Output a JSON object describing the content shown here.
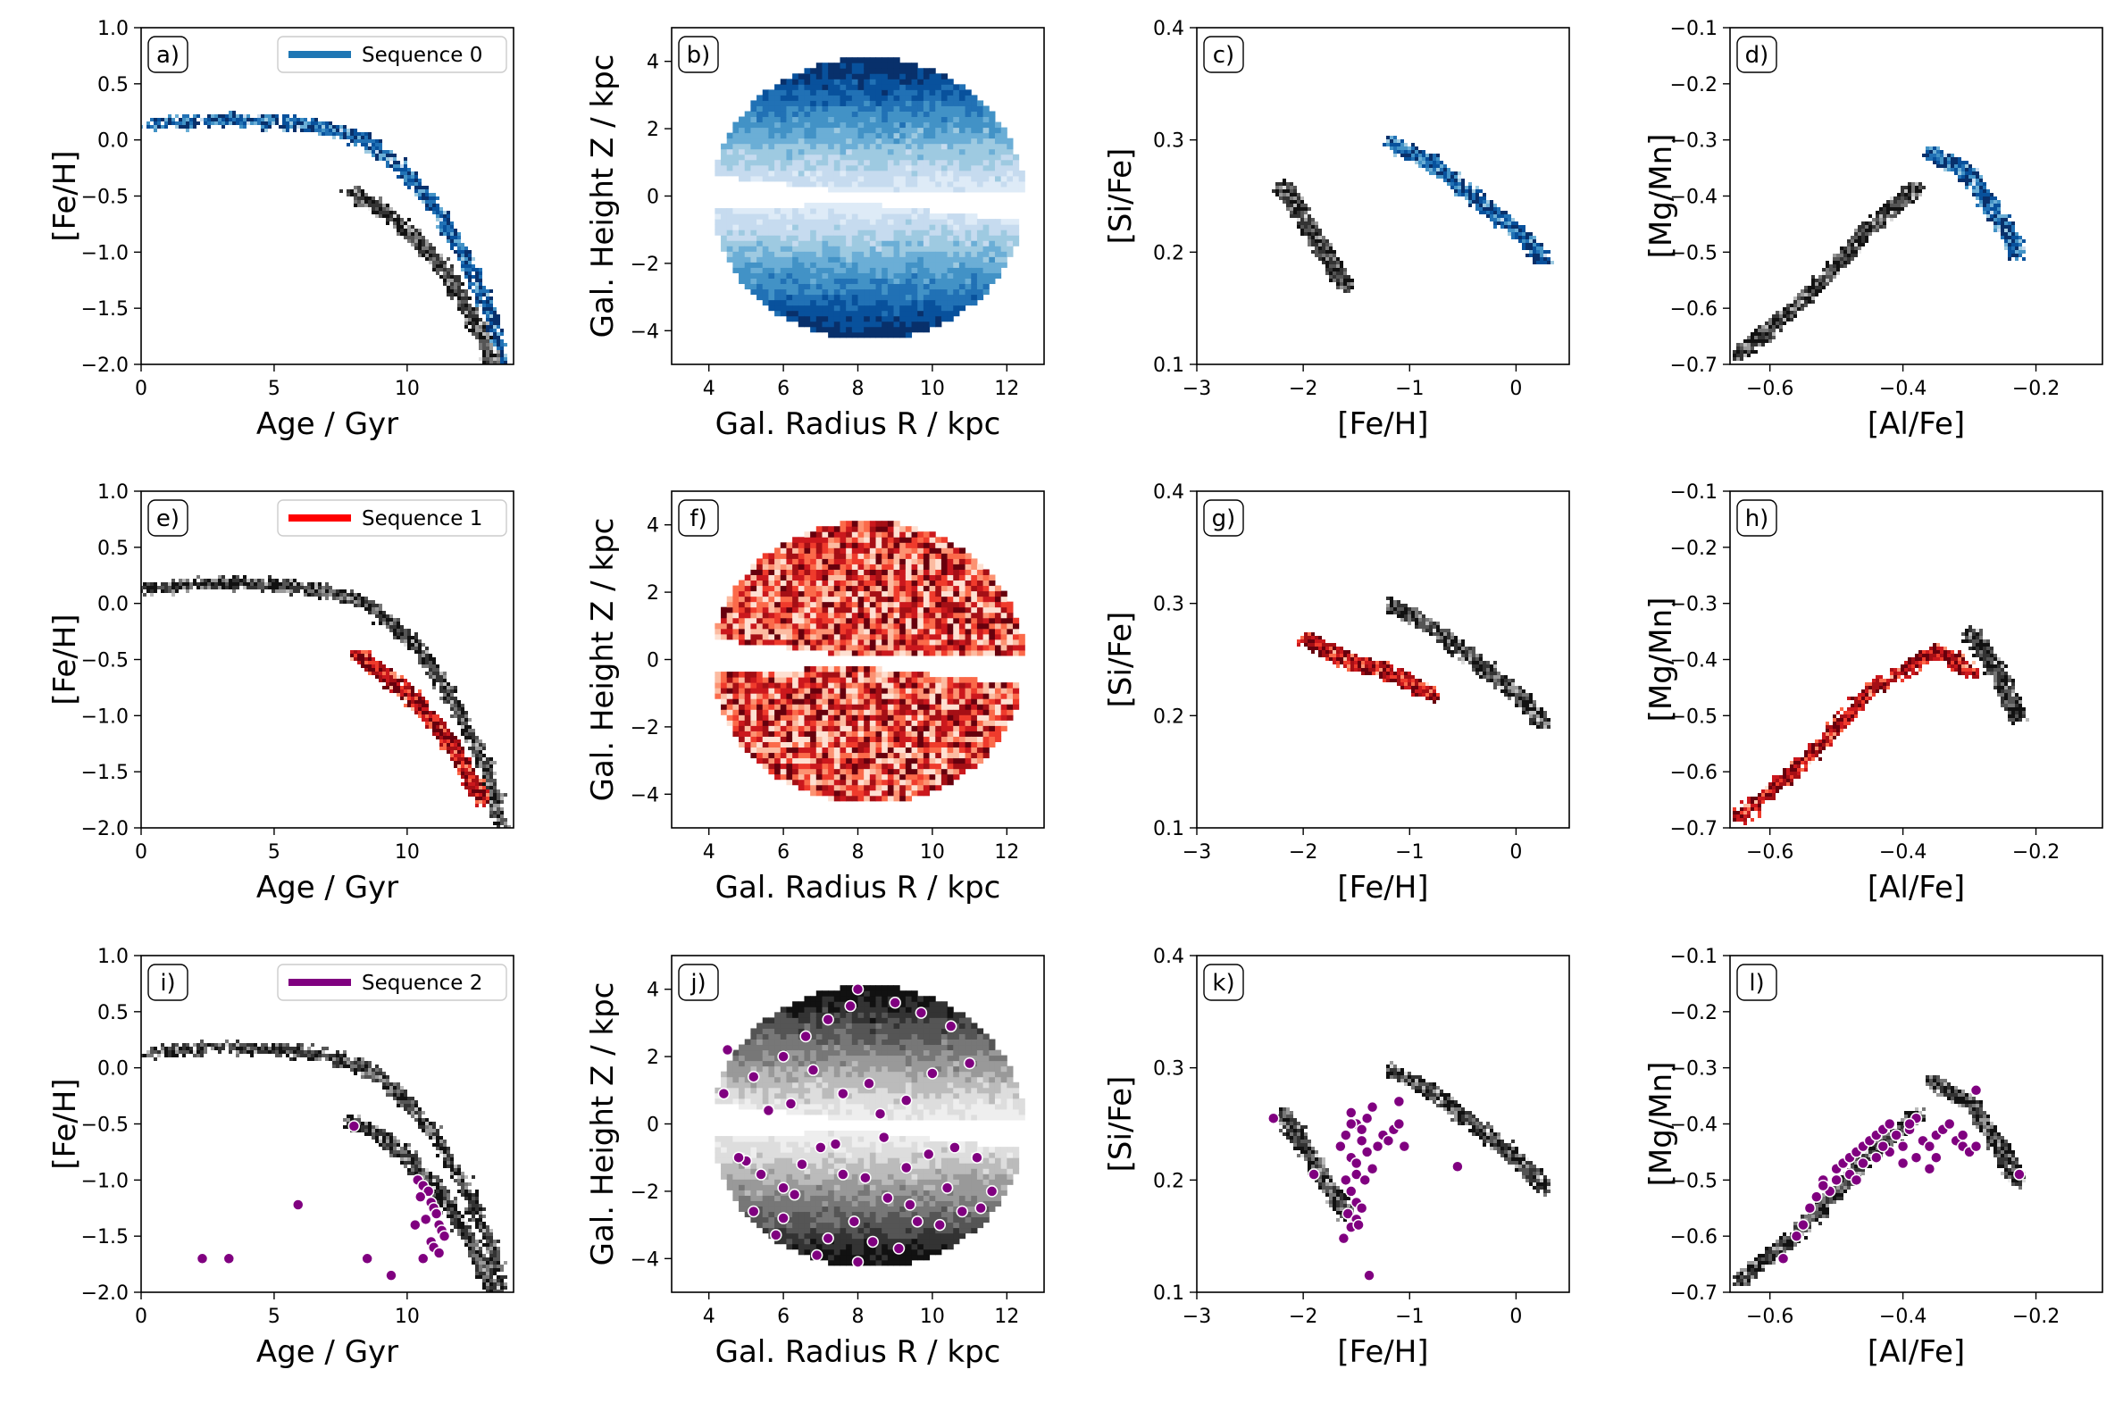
{
  "colors": {
    "sequence_0": "#1f77b4",
    "sequence_1": "#ff0000",
    "sequence_2": "#800080",
    "background_density": "greyscale"
  },
  "chart_data": [
    {
      "id": "a",
      "type": "heatmap",
      "panel_label": "a)",
      "xlabel": "Age / Gyr",
      "ylabel": "[Fe/H]",
      "xlim": [
        0,
        14
      ],
      "ylim": [
        -2.0,
        1.0
      ],
      "xticks": [
        0,
        5,
        10
      ],
      "yticks": [
        1.0,
        0.5,
        0.0,
        -0.5,
        -1.0,
        -1.5,
        -2.0
      ],
      "legend": {
        "label": "Sequence 0",
        "placement": "top-right"
      },
      "highlight": "blue",
      "density_tracks": [
        {
          "name": "",
          "x": [
            0,
            3,
            5,
            7,
            8.5,
            10,
            11,
            12,
            13,
            13.5
          ],
          "y": [
            0.15,
            0.2,
            0.18,
            0.12,
            0.0,
            -0.3,
            -0.6,
            -1.0,
            -1.5,
            -2.0
          ],
          "highlight": true
        },
        {
          "name": "",
          "x": [
            7.8,
            9,
            10,
            11,
            12,
            12.8,
            13.2
          ],
          "y": [
            -0.45,
            -0.6,
            -0.8,
            -1.05,
            -1.4,
            -1.75,
            -2.0
          ],
          "highlight": false
        }
      ]
    },
    {
      "id": "b",
      "type": "heatmap",
      "panel_label": "b)",
      "xlabel": "Gal. Radius R / kpc",
      "ylabel": "Gal. Height Z / kpc",
      "xlim": [
        3,
        13
      ],
      "ylim": [
        -5,
        5
      ],
      "xticks": [
        4,
        6,
        8,
        10,
        12
      ],
      "yticks": [
        4,
        2,
        0,
        -2,
        -4
      ],
      "highlight": "blue",
      "region": {
        "center_R": 8.2,
        "radius": 4.2,
        "excluded_wedge": true
      }
    },
    {
      "id": "c",
      "type": "heatmap",
      "panel_label": "c)",
      "xlabel": "[Fe/H]",
      "ylabel": "[Si/Fe]",
      "xlim": [
        -3,
        0.5
      ],
      "ylim": [
        0.1,
        0.4
      ],
      "xticks": [
        -3,
        -2,
        -1,
        0
      ],
      "yticks": [
        0.1,
        0.2,
        0.3,
        0.4
      ],
      "highlight": "blue",
      "density_tracks": [
        {
          "name": "",
          "x": [
            -1.2,
            -0.8,
            -0.4,
            0,
            0.25
          ],
          "y": [
            0.3,
            0.28,
            0.25,
            0.22,
            0.195
          ],
          "highlight": true
        },
        {
          "name": "",
          "x": [
            -2.2,
            -2.0,
            -1.8,
            -1.6
          ],
          "y": [
            0.26,
            0.23,
            0.2,
            0.17
          ],
          "highlight": false
        }
      ]
    },
    {
      "id": "d",
      "type": "heatmap",
      "panel_label": "d)",
      "xlabel": "[Al/Fe]",
      "ylabel": "[Mg/Mn]",
      "xlim": [
        -0.66,
        -0.1
      ],
      "ylim": [
        -0.7,
        -0.1
      ],
      "xticks": [
        -0.6,
        -0.4,
        -0.2
      ],
      "yticks": [
        -0.1,
        -0.2,
        -0.3,
        -0.4,
        -0.5,
        -0.6,
        -0.7
      ],
      "highlight": "blue",
      "density_tracks": [
        {
          "name": "",
          "x": [
            -0.65,
            -0.55,
            -0.45,
            -0.38
          ],
          "y": [
            -0.68,
            -0.58,
            -0.45,
            -0.38
          ],
          "highlight": false
        },
        {
          "name": "",
          "x": [
            -0.36,
            -0.3,
            -0.25,
            -0.23
          ],
          "y": [
            -0.32,
            -0.36,
            -0.45,
            -0.5
          ],
          "highlight": true
        }
      ]
    },
    {
      "id": "e",
      "type": "heatmap",
      "panel_label": "e)",
      "xlabel": "Age / Gyr",
      "ylabel": "[Fe/H]",
      "xlim": [
        0,
        14
      ],
      "ylim": [
        -2.0,
        1.0
      ],
      "xticks": [
        0,
        5,
        10
      ],
      "yticks": [
        1.0,
        0.5,
        0.0,
        -0.5,
        -1.0,
        -1.5,
        -2.0
      ],
      "legend": {
        "label": "Sequence 1",
        "placement": "top-right"
      },
      "highlight": "red",
      "density_tracks": [
        {
          "name": "",
          "x": [
            0,
            3,
            5,
            7,
            8.5,
            10,
            11,
            12,
            13,
            13.5
          ],
          "y": [
            0.15,
            0.2,
            0.18,
            0.12,
            0.0,
            -0.3,
            -0.6,
            -1.0,
            -1.5,
            -2.0
          ],
          "highlight": false
        },
        {
          "name": "",
          "x": [
            8,
            9,
            10,
            11,
            12,
            12.8
          ],
          "y": [
            -0.45,
            -0.6,
            -0.8,
            -1.05,
            -1.4,
            -1.75
          ],
          "highlight": true
        }
      ]
    },
    {
      "id": "f",
      "type": "heatmap",
      "panel_label": "f)",
      "xlabel": "Gal. Radius R / kpc",
      "ylabel": "Gal. Height Z / kpc",
      "xlim": [
        3,
        13
      ],
      "ylim": [
        -5,
        5
      ],
      "xticks": [
        4,
        6,
        8,
        10,
        12
      ],
      "yticks": [
        4,
        2,
        0,
        -2,
        -4
      ],
      "highlight": "red",
      "region": {
        "center_R": 8.2,
        "radius": 4.2,
        "excluded_wedge": true
      }
    },
    {
      "id": "g",
      "type": "heatmap",
      "panel_label": "g)",
      "xlabel": "[Fe/H]",
      "ylabel": "[Si/Fe]",
      "xlim": [
        -3,
        0.5
      ],
      "ylim": [
        0.1,
        0.4
      ],
      "xticks": [
        -3,
        -2,
        -1,
        0
      ],
      "yticks": [
        0.1,
        0.2,
        0.3,
        0.4
      ],
      "highlight": "red",
      "density_tracks": [
        {
          "name": "",
          "x": [
            -1.2,
            -0.8,
            -0.4,
            0,
            0.25
          ],
          "y": [
            0.3,
            0.28,
            0.25,
            0.22,
            0.195
          ],
          "highlight": false
        },
        {
          "name": "",
          "x": [
            -2.0,
            -1.6,
            -1.2,
            -0.8
          ],
          "y": [
            0.27,
            0.25,
            0.24,
            0.22
          ],
          "highlight": true
        }
      ]
    },
    {
      "id": "h",
      "type": "heatmap",
      "panel_label": "h)",
      "xlabel": "[Al/Fe]",
      "ylabel": "[Mg/Mn]",
      "xlim": [
        -0.66,
        -0.1
      ],
      "ylim": [
        -0.7,
        -0.1
      ],
      "xticks": [
        -0.6,
        -0.4,
        -0.2
      ],
      "yticks": [
        -0.1,
        -0.2,
        -0.3,
        -0.4,
        -0.5,
        -0.6,
        -0.7
      ],
      "highlight": "red",
      "density_tracks": [
        {
          "name": "",
          "x": [
            -0.65,
            -0.55,
            -0.45,
            -0.35,
            -0.3
          ],
          "y": [
            -0.68,
            -0.58,
            -0.45,
            -0.38,
            -0.42
          ],
          "highlight": true
        },
        {
          "name": "",
          "x": [
            -0.3,
            -0.26,
            -0.23
          ],
          "y": [
            -0.35,
            -0.42,
            -0.5
          ],
          "highlight": false
        }
      ]
    },
    {
      "id": "i",
      "type": "scatter",
      "panel_label": "i)",
      "xlabel": "Age / Gyr",
      "ylabel": "[Fe/H]",
      "xlim": [
        0,
        14
      ],
      "ylim": [
        -2.0,
        1.0
      ],
      "xticks": [
        0,
        5,
        10
      ],
      "yticks": [
        1.0,
        0.5,
        0.0,
        -0.5,
        -1.0,
        -1.5,
        -2.0
      ],
      "legend": {
        "label": "Sequence 2",
        "placement": "top-right"
      },
      "series": [
        {
          "name": "Sequence 2",
          "color": "#800080",
          "x": [
            2.3,
            3.3,
            5.9,
            8.0,
            8.5,
            9.4,
            10.4,
            10.6,
            10.8,
            10.5,
            10.9,
            11.0,
            11.1,
            10.7,
            11.2,
            11.3,
            11.4,
            10.9,
            11.0,
            11.2,
            10.6,
            10.3
          ],
          "y": [
            -1.7,
            -1.7,
            -1.22,
            -0.52,
            -1.7,
            -1.85,
            -1.0,
            -1.05,
            -1.1,
            -1.15,
            -1.2,
            -1.25,
            -1.3,
            -1.35,
            -1.4,
            -1.45,
            -1.5,
            -1.55,
            -1.6,
            -1.65,
            -1.7,
            -1.4
          ]
        }
      ]
    },
    {
      "id": "j",
      "type": "scatter",
      "panel_label": "j)",
      "xlabel": "Gal. Radius R / kpc",
      "ylabel": "Gal. Height Z / kpc",
      "xlim": [
        3,
        13
      ],
      "ylim": [
        -5,
        5
      ],
      "xticks": [
        4,
        6,
        8,
        10,
        12
      ],
      "yticks": [
        4,
        2,
        0,
        -2,
        -4
      ],
      "series": [
        {
          "name": "Sequence 2",
          "color": "#800080",
          "x": [
            4.5,
            4.4,
            5.2,
            6.0,
            6.6,
            7.2,
            7.8,
            8.0,
            8.3,
            9.0,
            9.7,
            10.5,
            11.0,
            10.0,
            9.3,
            8.6,
            7.6,
            6.8,
            6.2,
            5.6,
            5.0,
            5.4,
            6.0,
            6.5,
            7.0,
            7.6,
            8.2,
            8.8,
            9.3,
            9.9,
            10.6,
            11.2,
            11.6,
            10.8,
            9.6,
            8.4,
            7.2,
            6.0,
            5.2,
            4.8,
            5.8,
            6.9,
            8.0,
            9.1,
            10.2,
            11.3,
            7.4,
            8.7,
            9.4,
            10.4,
            6.3,
            7.9
          ],
          "y": [
            2.2,
            0.9,
            1.4,
            2.0,
            2.6,
            3.1,
            3.5,
            4.0,
            1.2,
            3.6,
            3.3,
            2.9,
            1.8,
            1.5,
            0.7,
            0.3,
            0.9,
            1.6,
            0.6,
            0.4,
            -1.1,
            -1.5,
            -1.9,
            -1.2,
            -0.7,
            -1.5,
            -1.6,
            -2.2,
            -1.3,
            -0.9,
            -0.7,
            -1.0,
            -2.0,
            -2.6,
            -2.9,
            -3.5,
            -3.4,
            -2.8,
            -2.6,
            -1.0,
            -3.3,
            -3.9,
            -4.1,
            -3.7,
            -3.0,
            -2.5,
            -0.6,
            -0.4,
            -2.4,
            -1.9,
            -2.1,
            -2.9
          ]
        }
      ]
    },
    {
      "id": "k",
      "type": "scatter",
      "panel_label": "k)",
      "xlabel": "[Fe/H]",
      "ylabel": "[Si/Fe]",
      "xlim": [
        -3,
        0.5
      ],
      "ylim": [
        0.1,
        0.4
      ],
      "xticks": [
        -3,
        -2,
        -1,
        0
      ],
      "yticks": [
        0.1,
        0.2,
        0.3,
        0.4
      ],
      "series": [
        {
          "name": "Sequence 2",
          "color": "#800080",
          "x": [
            -2.28,
            -1.55,
            -1.5,
            -1.6,
            -1.45,
            -1.4,
            -1.35,
            -1.65,
            -1.55,
            -1.5,
            -1.45,
            -1.6,
            -1.5,
            -1.4,
            -1.3,
            -1.25,
            -1.2,
            -1.15,
            -1.1,
            -1.05,
            -1.55,
            -1.5,
            -1.45,
            -1.58,
            -1.5,
            -1.42,
            -1.35,
            -1.55,
            -1.48,
            -1.9,
            -1.62,
            -1.55,
            -1.38,
            -1.1,
            -0.55
          ],
          "y": [
            0.255,
            0.26,
            0.25,
            0.24,
            0.245,
            0.255,
            0.265,
            0.23,
            0.22,
            0.215,
            0.235,
            0.2,
            0.205,
            0.225,
            0.23,
            0.24,
            0.235,
            0.245,
            0.27,
            0.23,
            0.19,
            0.18,
            0.175,
            0.17,
            0.165,
            0.2,
            0.21,
            0.158,
            0.16,
            0.205,
            0.148,
            0.25,
            0.115,
            0.25,
            0.212
          ]
        }
      ]
    },
    {
      "id": "l",
      "type": "scatter",
      "panel_label": "l)",
      "xlabel": "[Al/Fe]",
      "ylabel": "[Mg/Mn]",
      "xlim": [
        -0.66,
        -0.1
      ],
      "ylim": [
        -0.7,
        -0.1
      ],
      "xticks": [
        -0.6,
        -0.4,
        -0.2
      ],
      "yticks": [
        -0.1,
        -0.2,
        -0.3,
        -0.4,
        -0.5,
        -0.6,
        -0.7
      ],
      "series": [
        {
          "name": "Sequence 2",
          "color": "#800080",
          "x": [
            -0.58,
            -0.56,
            -0.55,
            -0.54,
            -0.53,
            -0.52,
            -0.51,
            -0.5,
            -0.49,
            -0.48,
            -0.47,
            -0.46,
            -0.45,
            -0.44,
            -0.43,
            -0.42,
            -0.41,
            -0.4,
            -0.39,
            -0.38,
            -0.37,
            -0.36,
            -0.35,
            -0.34,
            -0.33,
            -0.32,
            -0.31,
            -0.3,
            -0.29,
            -0.5,
            -0.48,
            -0.46,
            -0.44,
            -0.42,
            -0.4,
            -0.38,
            -0.36,
            -0.52,
            -0.47,
            -0.43,
            -0.39,
            -0.35,
            -0.31,
            -0.29,
            -0.225
          ],
          "y": [
            -0.64,
            -0.6,
            -0.58,
            -0.55,
            -0.53,
            -0.5,
            -0.52,
            -0.48,
            -0.47,
            -0.46,
            -0.45,
            -0.44,
            -0.43,
            -0.42,
            -0.41,
            -0.4,
            -0.42,
            -0.44,
            -0.41,
            -0.39,
            -0.43,
            -0.44,
            -0.42,
            -0.41,
            -0.4,
            -0.43,
            -0.44,
            -0.45,
            -0.34,
            -0.5,
            -0.49,
            -0.47,
            -0.46,
            -0.45,
            -0.47,
            -0.46,
            -0.48,
            -0.51,
            -0.5,
            -0.44,
            -0.4,
            -0.46,
            -0.42,
            -0.44,
            -0.49
          ]
        }
      ]
    }
  ]
}
